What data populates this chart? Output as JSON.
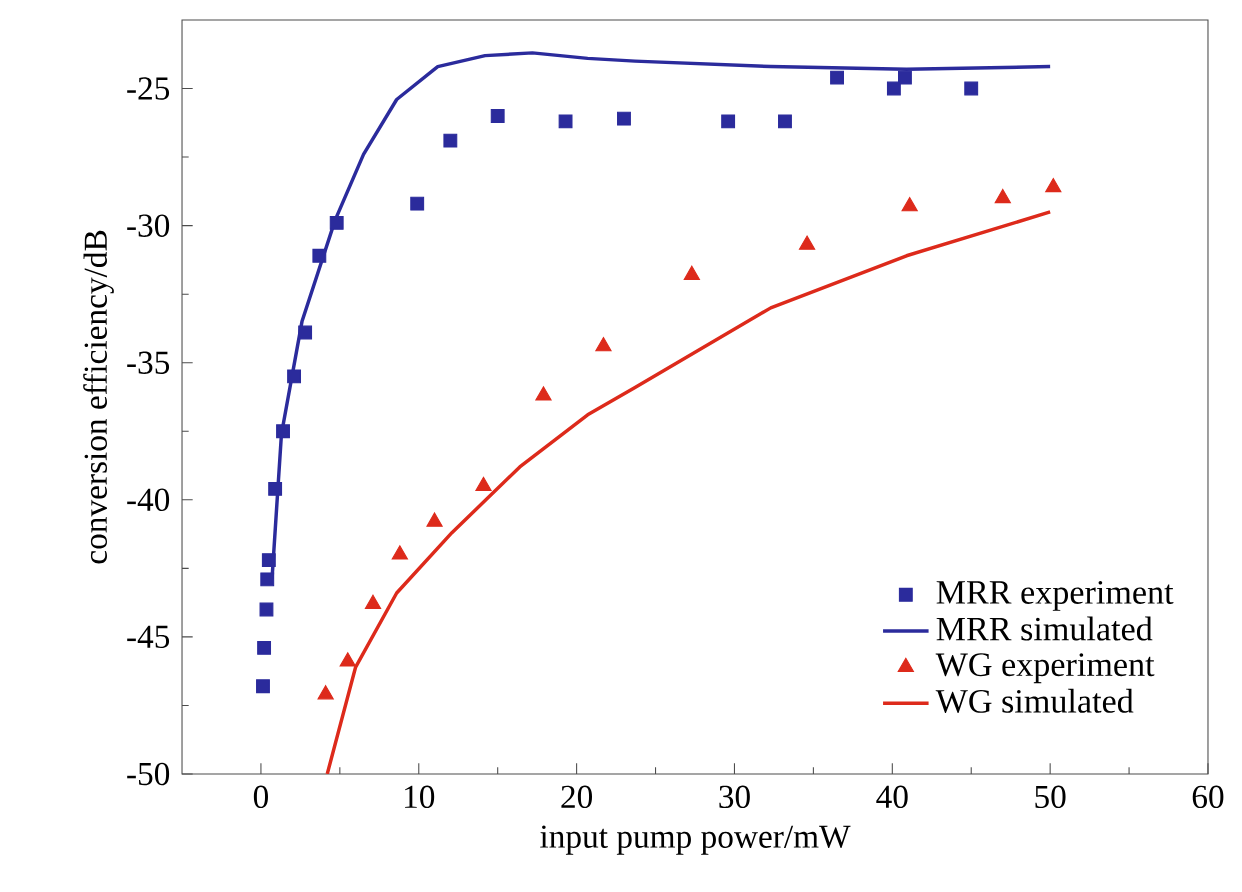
{
  "chart_data": {
    "type": "scatter",
    "xlabel": "input pump power/mW",
    "ylabel": "conversion efficiency/dB",
    "xlim": [
      -5,
      60
    ],
    "ylim": [
      -50,
      -22.5
    ],
    "xticks": [
      0,
      10,
      20,
      30,
      40,
      50,
      60
    ],
    "yticks": [
      -50,
      -45,
      -40,
      -35,
      -30,
      -25
    ],
    "legend": "bottom right",
    "grid": false,
    "series": [
      {
        "name": "MRR experiment",
        "marker": "square",
        "color": "#2b2b9c",
        "x": [
          0.13,
          0.2,
          0.35,
          0.4,
          0.5,
          0.9,
          1.4,
          2.1,
          2.8,
          3.7,
          4.8,
          9.9,
          12.0,
          15.0,
          19.3,
          23.0,
          29.6,
          33.2,
          36.5,
          40.1,
          40.8,
          45.0
        ],
        "values": [
          -46.8,
          -45.4,
          -44.0,
          -42.9,
          -42.2,
          -39.6,
          -37.5,
          -35.5,
          -33.9,
          -31.1,
          -29.9,
          -29.2,
          -26.9,
          -26.0,
          -26.2,
          -26.1,
          -26.2,
          -26.2,
          -24.6,
          -25.0,
          -24.6,
          -25.0
        ]
      },
      {
        "name": "MRR simulated",
        "type": "line",
        "marker": "none",
        "color": "#2b2b9c",
        "x": [
          0.7,
          1.3,
          2.6,
          4.7,
          6.5,
          8.6,
          11.2,
          14.2,
          17.2,
          20.7,
          23.7,
          32.3,
          40.9,
          50.0
        ],
        "values": [
          -42.9,
          -37.6,
          -33.5,
          -29.8,
          -27.4,
          -25.4,
          -24.2,
          -23.8,
          -23.7,
          -23.9,
          -24.0,
          -24.2,
          -24.3,
          -24.2
        ]
      },
      {
        "name": "WG experiment",
        "marker": "triangle",
        "color": "#dd2a1b",
        "x": [
          4.1,
          5.5,
          7.1,
          8.8,
          11.0,
          14.1,
          17.9,
          21.7,
          27.3,
          34.6,
          41.1,
          47.0,
          50.2
        ],
        "values": [
          -47.1,
          -45.9,
          -43.8,
          -42.0,
          -40.8,
          -39.5,
          -36.2,
          -34.4,
          -31.8,
          -30.7,
          -29.3,
          -29.0,
          -28.6
        ]
      },
      {
        "name": "WG simulated",
        "type": "line",
        "marker": "none",
        "color": "#dd2a1b",
        "x": [
          4.2,
          6.0,
          8.6,
          12.1,
          16.4,
          20.7,
          23.7,
          32.3,
          40.9,
          50.0
        ],
        "values": [
          -50.0,
          -46.1,
          -43.4,
          -41.2,
          -38.8,
          -36.9,
          -35.9,
          -33.0,
          -31.1,
          -29.5
        ]
      }
    ]
  }
}
